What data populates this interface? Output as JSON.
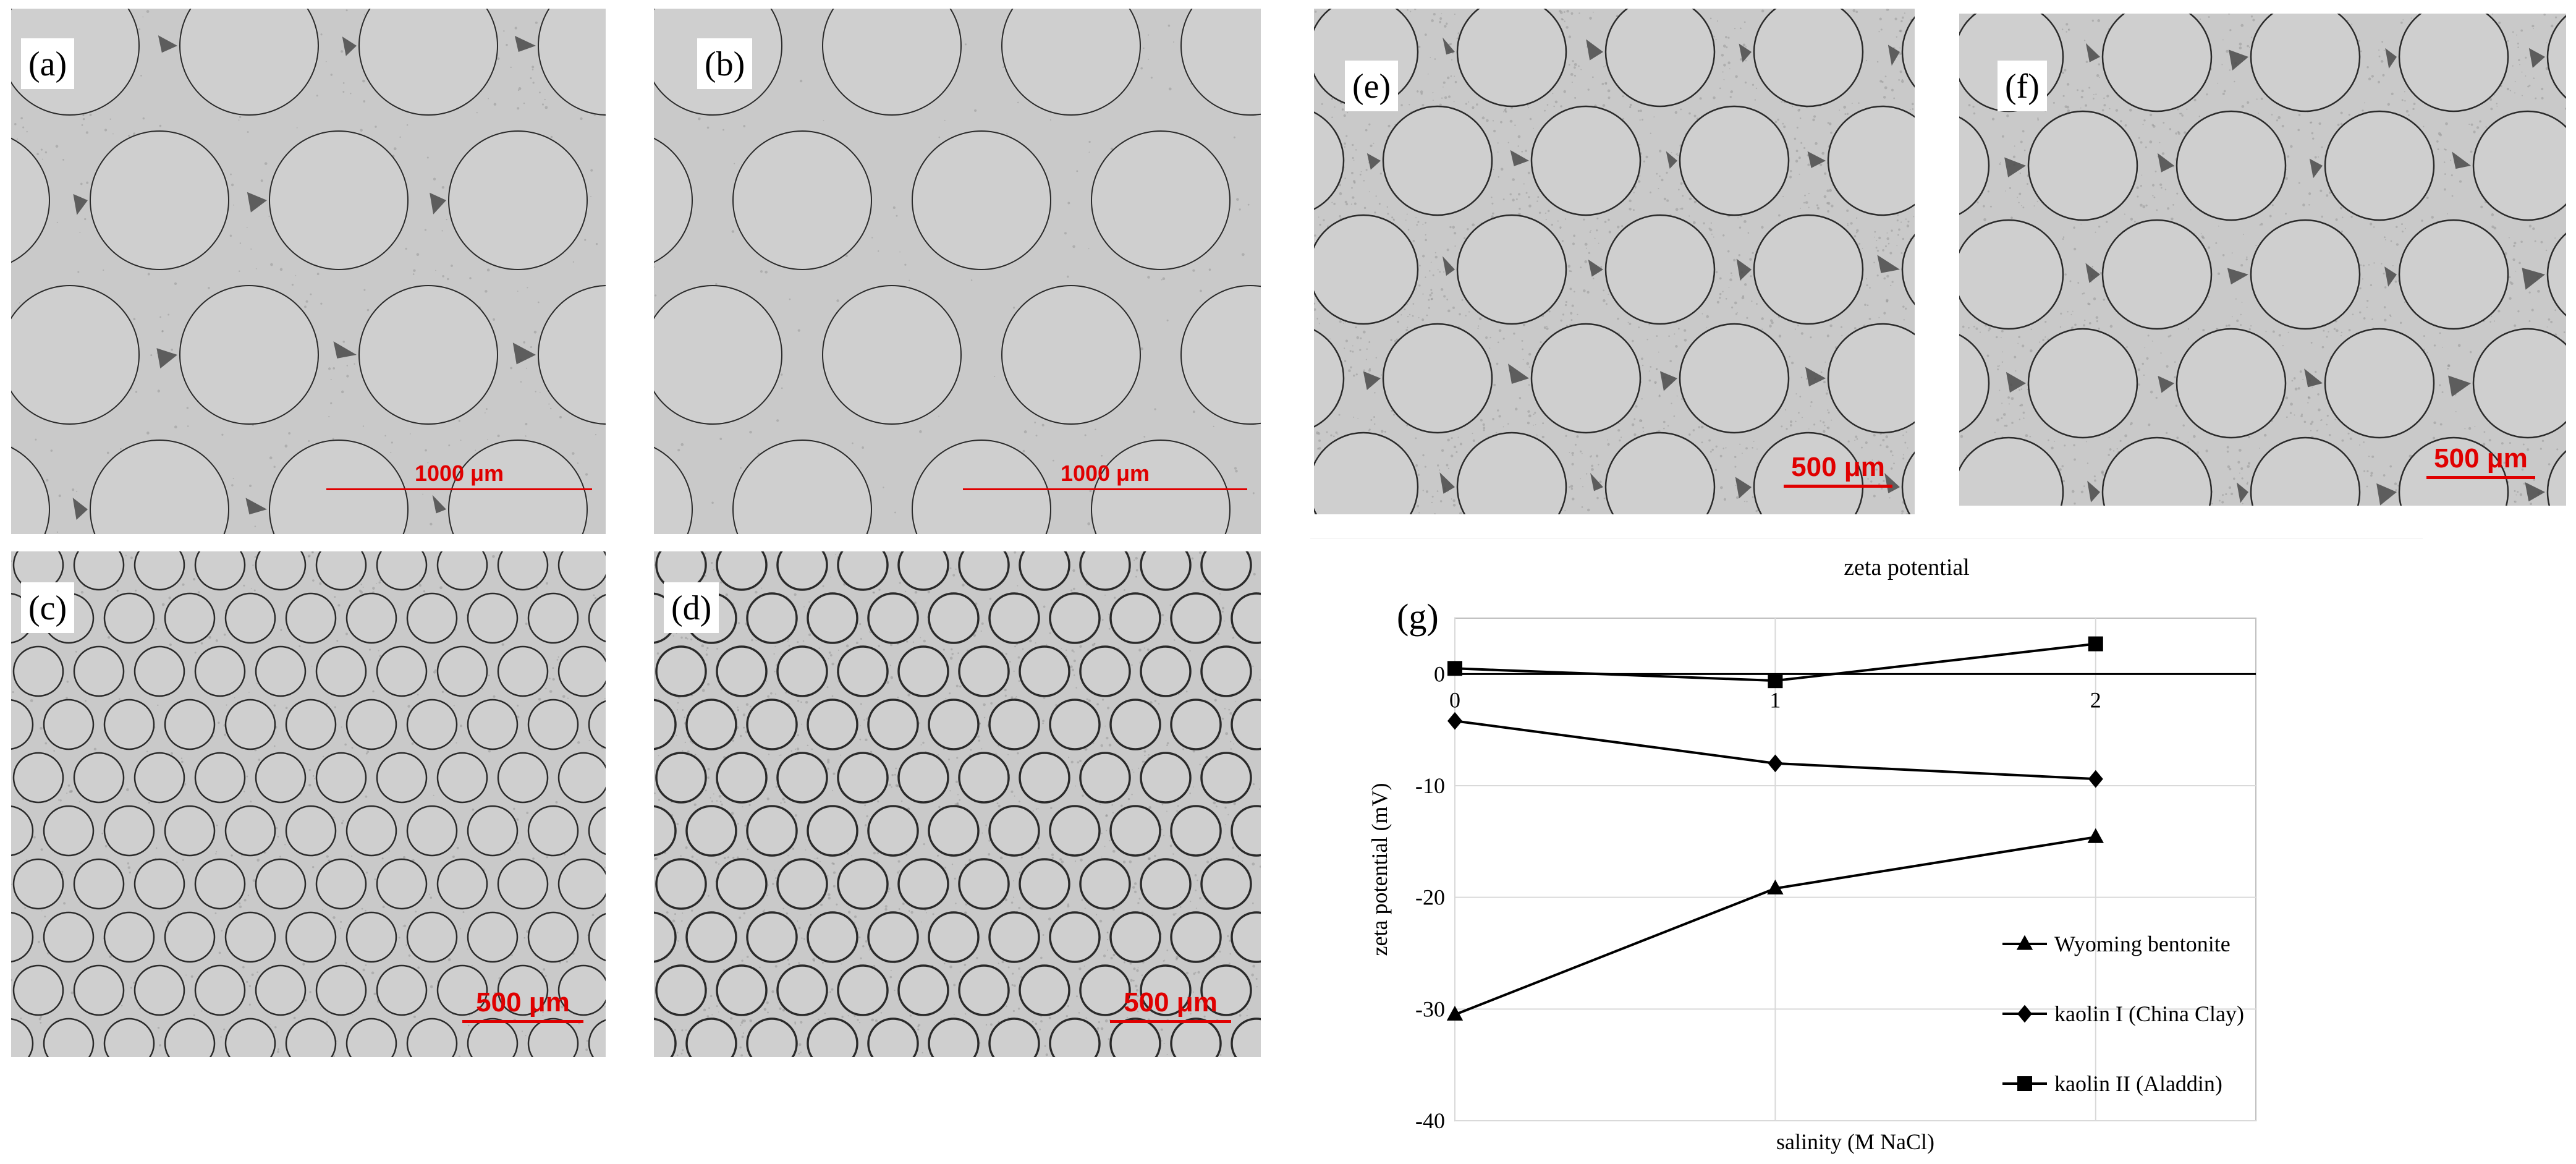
{
  "panels": [
    {
      "id": "a",
      "label": "(a)",
      "scale": "1000 μm"
    },
    {
      "id": "b",
      "label": "(b)",
      "scale": "1000 μm"
    },
    {
      "id": "c",
      "label": "(c)",
      "scale": "500 μm"
    },
    {
      "id": "d",
      "label": "(d)",
      "scale": "500 μm"
    },
    {
      "id": "e",
      "label": "(e)",
      "scale": "500 μm"
    },
    {
      "id": "f",
      "label": "(f)",
      "scale": "500 μm"
    },
    {
      "id": "g",
      "label": "(g)"
    }
  ],
  "colors": {
    "scale_bar": "#e00000",
    "micrograph_background": "#c9c9c9",
    "grain_outline": "#2a2a2a",
    "clay_deposit": "#4a4a4a"
  },
  "chart_data": {
    "type": "line",
    "title": "zeta potential",
    "xlabel": "salinity  (M NaCl)",
    "ylabel": "zeta potential  (mV)",
    "x": [
      0,
      1,
      2
    ],
    "xlim": [
      0,
      2.5
    ],
    "ylim": [
      -40,
      5
    ],
    "xticks": [
      "0",
      "1",
      "2"
    ],
    "yticks": [
      "0",
      "-10",
      "-20",
      "-30",
      "-40"
    ],
    "grid": true,
    "legend_position": "bottom-right",
    "series": [
      {
        "name": "Wyoming bentonite",
        "marker": "triangle",
        "values": [
          -30.5,
          -19.2,
          -14.6
        ]
      },
      {
        "name": "kaolin I (China Clay)",
        "marker": "diamond",
        "values": [
          -4.2,
          -8.0,
          -9.4
        ]
      },
      {
        "name": "kaolin II (Aladdin)",
        "marker": "square",
        "values": [
          0.5,
          -0.6,
          2.7
        ]
      }
    ]
  }
}
